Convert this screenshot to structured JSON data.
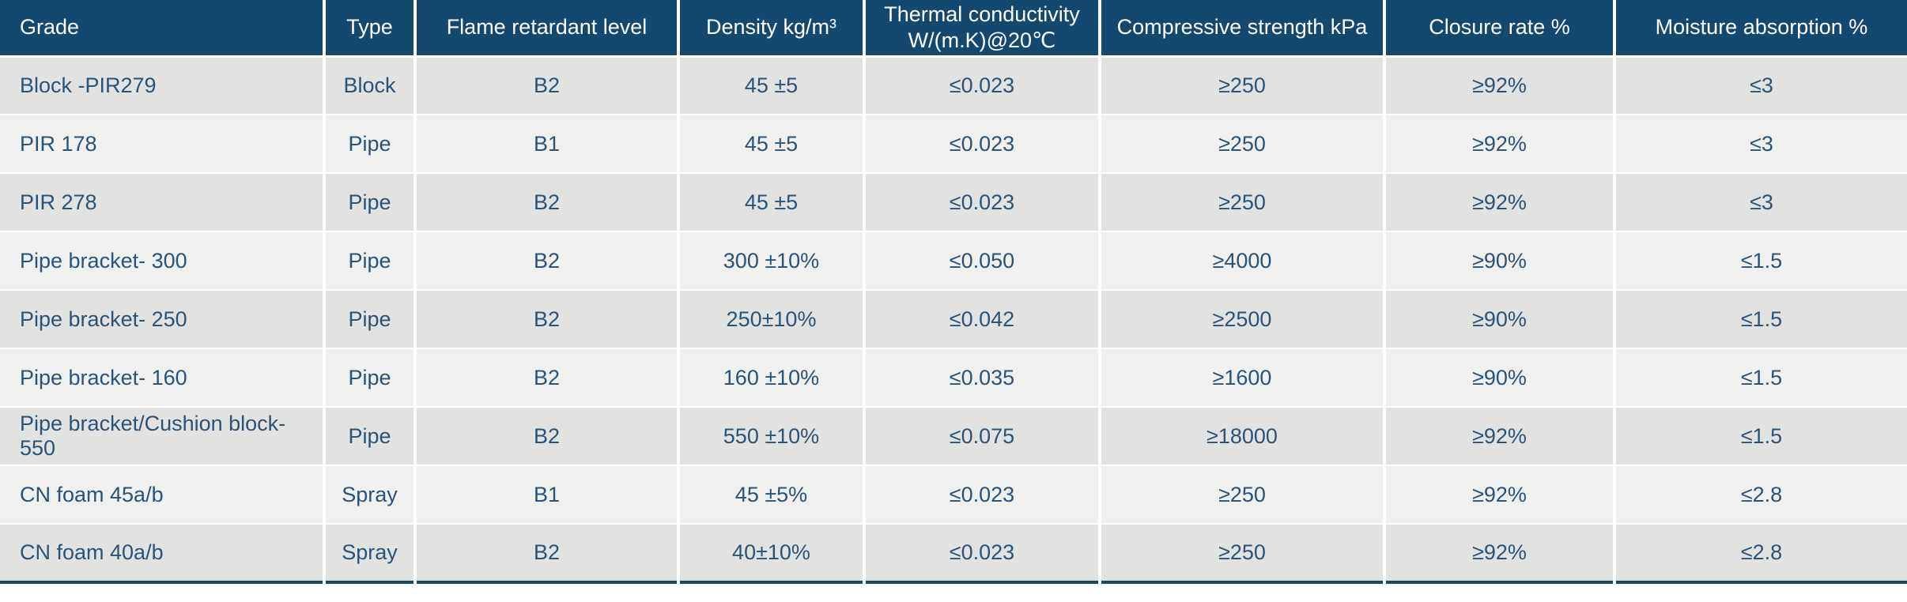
{
  "colors": {
    "header_bg": "#15486e",
    "header_text": "#ffffff",
    "row_odd": "#e2e2e1",
    "row_even": "#f0f0ef",
    "cell_text": "#2a5378",
    "table_bottom": "#1b4765"
  },
  "chart_data": {
    "type": "table",
    "title": "",
    "columns": [
      {
        "key": "grade",
        "label": "Grade",
        "align": "left"
      },
      {
        "key": "type",
        "label": "Type",
        "align": "center"
      },
      {
        "key": "flame-retardant-level",
        "label": "Flame retardant level",
        "align": "center"
      },
      {
        "key": "density",
        "label": "Density kg/m³",
        "align": "center"
      },
      {
        "key": "thermal-conductivity",
        "label": "Thermal conductivity\nW/(m.K)@20℃",
        "align": "center"
      },
      {
        "key": "compressive-strength",
        "label": "Compressive strength kPa",
        "align": "center"
      },
      {
        "key": "closure-rate",
        "label": "Closure rate %",
        "align": "center"
      },
      {
        "key": "moisture-absorption",
        "label": "Moisture absorption %",
        "align": "center"
      }
    ],
    "rows": [
      [
        "Block -PIR279",
        "Block",
        "B2",
        "45 ±5",
        "≤0.023",
        "≥250",
        "≥92%",
        "≤3"
      ],
      [
        "PIR 178",
        "Pipe",
        "B1",
        "45 ±5",
        "≤0.023",
        "≥250",
        "≥92%",
        "≤3"
      ],
      [
        "PIR 278",
        "Pipe",
        "B2",
        "45 ±5",
        "≤0.023",
        "≥250",
        "≥92%",
        "≤3"
      ],
      [
        "Pipe bracket- 300",
        "Pipe",
        "B2",
        "300 ±10%",
        "≤0.050",
        "≥4000",
        "≥90%",
        "≤1.5"
      ],
      [
        "Pipe bracket- 250",
        "Pipe",
        "B2",
        "250±10%",
        "≤0.042",
        "≥2500",
        "≥90%",
        "≤1.5"
      ],
      [
        "Pipe bracket- 160",
        "Pipe",
        "B2",
        "160 ±10%",
        "≤0.035",
        "≥1600",
        "≥90%",
        "≤1.5"
      ],
      [
        "Pipe bracket/Cushion block- 550",
        "Pipe",
        "B2",
        "550 ±10%",
        "≤0.075",
        "≥18000",
        "≥92%",
        "≤1.5"
      ],
      [
        "CN foam 45a/b",
        "Spray",
        "B1",
        "45 ±5%",
        "≤0.023",
        "≥250",
        "≥92%",
        "≤2.8"
      ],
      [
        "CN foam 40a/b",
        "Spray",
        "B2",
        "40±10%",
        "≤0.023",
        "≥250",
        "≥92%",
        "≤2.8"
      ]
    ]
  }
}
